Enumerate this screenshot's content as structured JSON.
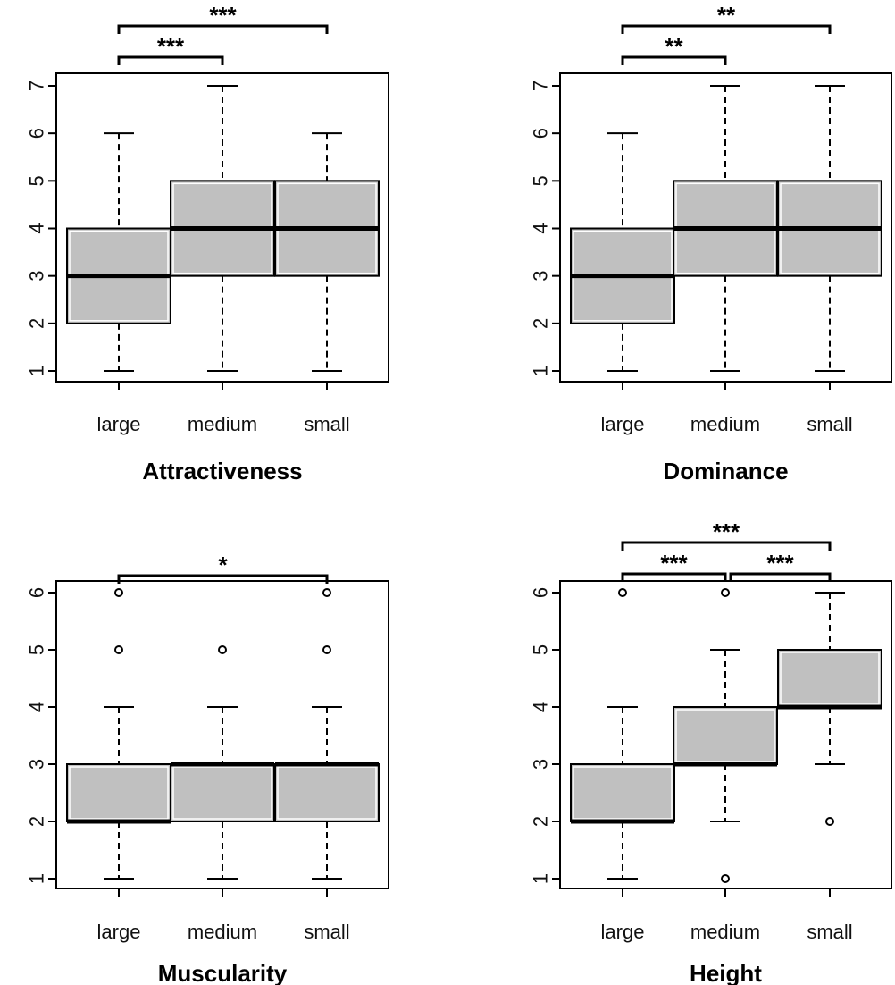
{
  "colors": {
    "box_fill": "#c0c0c0",
    "stroke": "#000000",
    "background": "#ffffff"
  },
  "chart_data": [
    {
      "type": "boxplot",
      "title": "Attractiveness",
      "categories": [
        "large",
        "medium",
        "small"
      ],
      "ylim": [
        1,
        7
      ],
      "yticks": [
        "1",
        "2",
        "3",
        "4",
        "5",
        "6",
        "7"
      ],
      "boxes": [
        {
          "category": "large",
          "whisker_low": 1,
          "q1": 2,
          "median": 3,
          "q3": 4,
          "whisker_high": 6,
          "outliers": []
        },
        {
          "category": "medium",
          "whisker_low": 1,
          "q1": 3,
          "median": 4,
          "q3": 5,
          "whisker_high": 7,
          "outliers": []
        },
        {
          "category": "small",
          "whisker_low": 1,
          "q1": 3,
          "median": 4,
          "q3": 5,
          "whisker_high": 6,
          "outliers": []
        }
      ],
      "significance": [
        {
          "from": "large",
          "to": "medium",
          "label": "***"
        },
        {
          "from": "large",
          "to": "small",
          "label": "***"
        }
      ]
    },
    {
      "type": "boxplot",
      "title": "Dominance",
      "categories": [
        "large",
        "medium",
        "small"
      ],
      "ylim": [
        1,
        7
      ],
      "yticks": [
        "1",
        "2",
        "3",
        "4",
        "5",
        "6",
        "7"
      ],
      "boxes": [
        {
          "category": "large",
          "whisker_low": 1,
          "q1": 2,
          "median": 3,
          "q3": 4,
          "whisker_high": 6,
          "outliers": []
        },
        {
          "category": "medium",
          "whisker_low": 1,
          "q1": 3,
          "median": 4,
          "q3": 5,
          "whisker_high": 7,
          "outliers": []
        },
        {
          "category": "small",
          "whisker_low": 1,
          "q1": 3,
          "median": 4,
          "q3": 5,
          "whisker_high": 7,
          "outliers": []
        }
      ],
      "significance": [
        {
          "from": "large",
          "to": "medium",
          "label": "**"
        },
        {
          "from": "large",
          "to": "small",
          "label": "**"
        }
      ]
    },
    {
      "type": "boxplot",
      "title": "Muscularity",
      "categories": [
        "large",
        "medium",
        "small"
      ],
      "ylim": [
        1,
        6
      ],
      "yticks": [
        "1",
        "2",
        "3",
        "4",
        "5",
        "6"
      ],
      "boxes": [
        {
          "category": "large",
          "whisker_low": 1,
          "q1": 2,
          "median": 2,
          "q3": 3,
          "whisker_high": 4,
          "outliers": [
            5,
            6
          ]
        },
        {
          "category": "medium",
          "whisker_low": 1,
          "q1": 2,
          "median": 3,
          "q3": 3,
          "whisker_high": 4,
          "outliers": [
            5
          ]
        },
        {
          "category": "small",
          "whisker_low": 1,
          "q1": 2,
          "median": 3,
          "q3": 3,
          "whisker_high": 4,
          "outliers": [
            5,
            6
          ]
        }
      ],
      "significance": [
        {
          "from": "large",
          "to": "small",
          "label": "*"
        }
      ]
    },
    {
      "type": "boxplot",
      "title": "Height",
      "categories": [
        "large",
        "medium",
        "small"
      ],
      "ylim": [
        1,
        6
      ],
      "yticks": [
        "1",
        "2",
        "3",
        "4",
        "5",
        "6"
      ],
      "boxes": [
        {
          "category": "large",
          "whisker_low": 1,
          "q1": 2,
          "median": 2,
          "q3": 3,
          "whisker_high": 4,
          "outliers": [
            6
          ]
        },
        {
          "category": "medium",
          "whisker_low": 2,
          "q1": 3,
          "median": 3,
          "q3": 4,
          "whisker_high": 5,
          "outliers": [
            1,
            6
          ]
        },
        {
          "category": "small",
          "whisker_low": 3,
          "q1": 4,
          "median": 4,
          "q3": 5,
          "whisker_high": 6,
          "outliers": [
            2
          ]
        }
      ],
      "significance": [
        {
          "from": "large",
          "to": "medium",
          "label": "***"
        },
        {
          "from": "medium",
          "to": "small",
          "label": "***"
        },
        {
          "from": "large",
          "to": "small",
          "label": "***"
        }
      ]
    }
  ]
}
